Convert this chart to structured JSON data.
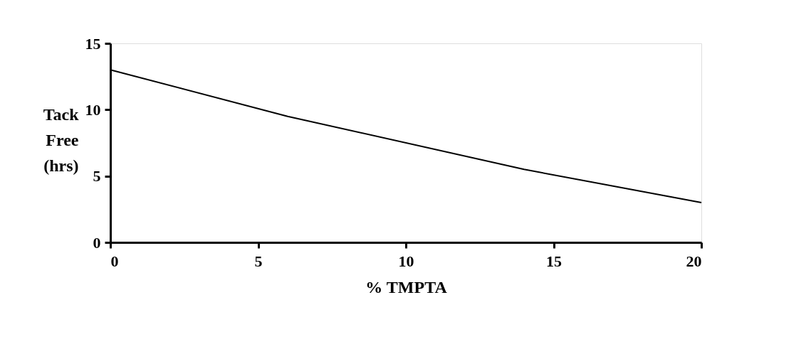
{
  "chart_data": {
    "type": "line",
    "xlabel": "% TMPTA",
    "ylabel": "Tack Free (hrs)",
    "x": [
      0,
      6,
      14,
      20
    ],
    "series": [
      {
        "color": "#000000",
        "values": [
          13,
          9.5,
          5.5,
          3
        ]
      }
    ],
    "xlim": [
      0,
      20
    ],
    "xticks": [
      0,
      5,
      10,
      15,
      20
    ],
    "ylim": [
      0,
      15
    ],
    "yticks": [
      0,
      5,
      10,
      15
    ],
    "grid": false,
    "legend": false,
    "marker": "none",
    "line_style": "solid"
  }
}
